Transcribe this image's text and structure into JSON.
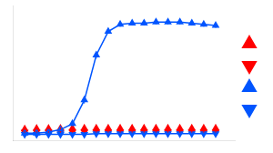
{
  "chart_data": {
    "type": "scatter",
    "xlim": [
      -2.5,
      6.8
    ],
    "ylim": [
      -0.04,
      1.1
    ],
    "xticks": [],
    "yticks": [],
    "tick_labels": false,
    "grid": false,
    "legend": "right",
    "x": [
      -2.0,
      -1.5,
      -1.0,
      -0.5,
      0.0,
      0.5,
      1.0,
      1.5,
      2.0,
      2.5,
      3.0,
      3.5,
      4.0,
      4.5,
      5.0,
      5.5,
      6.0
    ],
    "series": [
      {
        "type": "line",
        "color": "#0055ff",
        "marker": "triangle-up",
        "values": [
          0.02,
          0.02,
          0.03,
          0.05,
          0.1,
          0.3,
          0.68,
          0.88,
          0.94,
          0.95,
          0.95,
          0.96,
          0.96,
          0.96,
          0.95,
          0.94,
          0.93
        ],
        "errors": [
          0.01,
          0.01,
          0.01,
          0.01,
          0.02,
          0.03,
          0.03,
          0.02,
          0.02,
          0.02,
          0.02,
          0.02,
          0.02,
          0.02,
          0.02,
          0.02,
          0.02
        ]
      },
      {
        "type": "line",
        "color": "#0055ff",
        "marker": "triangle-down",
        "values": [
          0.01,
          0.01,
          0.01,
          0.01,
          0.01,
          0.01,
          0.015,
          0.015,
          0.015,
          0.015,
          0.015,
          0.015,
          0.015,
          0.015,
          0.015,
          0.015,
          0.015
        ],
        "errors": [
          0.004,
          0.004,
          0.004,
          0.004,
          0.004,
          0.004,
          0.004,
          0.004,
          0.004,
          0.004,
          0.004,
          0.004,
          0.004,
          0.004,
          0.004,
          0.004,
          0.004
        ]
      },
      {
        "type": "scatter",
        "color": "#ff0000",
        "marker": "triangle-up",
        "values": [
          0.055,
          0.06,
          0.06,
          0.06,
          0.062,
          0.062,
          0.062,
          0.062,
          0.062,
          0.062,
          0.062,
          0.062,
          0.062,
          0.062,
          0.062,
          0.062,
          0.062
        ],
        "errors": [
          0.01,
          0.01,
          0.01,
          0.01,
          0.01,
          0.01,
          0.01,
          0.01,
          0.01,
          0.01,
          0.01,
          0.01,
          0.01,
          0.01,
          0.01,
          0.01,
          0.01
        ]
      },
      {
        "type": "scatter",
        "color": "#ff0000",
        "marker": "triangle-down",
        "values": [
          0.03,
          0.03,
          0.03,
          0.03,
          0.03,
          0.03,
          0.03,
          0.03,
          0.03,
          0.03,
          0.03,
          0.03,
          0.03,
          0.03,
          0.03,
          0.03,
          0.03
        ],
        "errors": [
          0.006,
          0.006,
          0.006,
          0.006,
          0.006,
          0.006,
          0.006,
          0.006,
          0.006,
          0.006,
          0.006,
          0.006,
          0.006,
          0.006,
          0.006,
          0.006,
          0.006
        ]
      }
    ]
  }
}
